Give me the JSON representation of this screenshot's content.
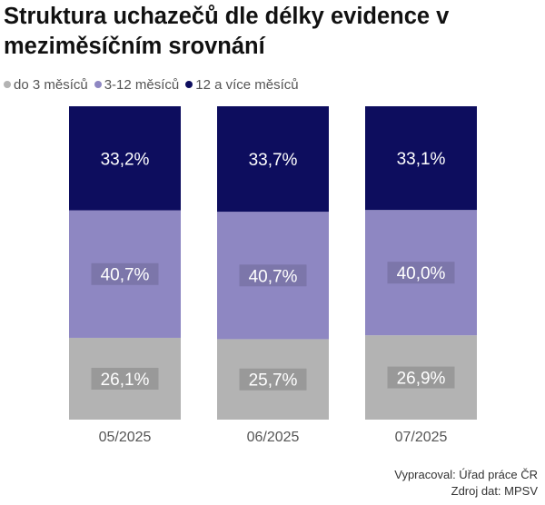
{
  "title": "Struktura uchazečů dle délky evidence v meziměsíčním srovnání",
  "footer": {
    "author": "Vypracoval: Úřad práce ČR",
    "source": "Zdroj dat: MPSV"
  },
  "chart_data": {
    "type": "bar",
    "stacked": true,
    "normalized": true,
    "categories": [
      "05/2025",
      "06/2025",
      "07/2025"
    ],
    "series": [
      {
        "name": "do 3 měsíců",
        "color": "#b3b3b3",
        "values": [
          26.1,
          25.7,
          26.9
        ],
        "labels": [
          "26,1%",
          "25,7%",
          "26,9%"
        ]
      },
      {
        "name": "3-12 měsíců",
        "color": "#8e87c2",
        "values": [
          40.7,
          40.7,
          40.0
        ],
        "labels": [
          "40,7%",
          "40,7%",
          "40,0%"
        ]
      },
      {
        "name": "12 a více měsíců",
        "color": "#0d0d5e",
        "values": [
          33.2,
          33.7,
          33.1
        ],
        "labels": [
          "33,2%",
          "33,7%",
          "33,1%"
        ]
      }
    ],
    "ylim": [
      0,
      100
    ],
    "legend_position": "top-left",
    "grid": false
  }
}
